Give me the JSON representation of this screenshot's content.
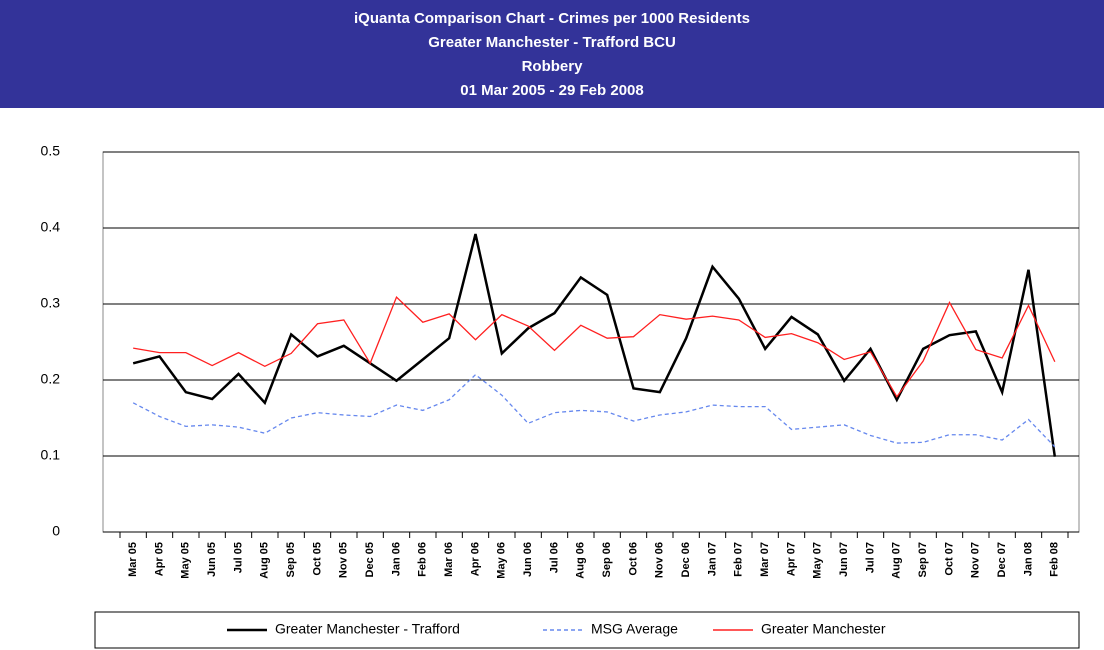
{
  "chart_data": {
    "type": "line",
    "title": [
      "iQuanta Comparison Chart - Crimes per 1000 Residents",
      "Greater Manchester - Trafford BCU",
      "Robbery",
      "01 Mar 2005 - 29 Feb 2008"
    ],
    "categories": [
      "Mar 05",
      "Apr 05",
      "May 05",
      "Jun 05",
      "Jul 05",
      "Aug 05",
      "Sep 05",
      "Oct 05",
      "Nov 05",
      "Dec 05",
      "Jan 06",
      "Feb 06",
      "Mar 06",
      "Apr 06",
      "May 06",
      "Jun 06",
      "Jul 06",
      "Aug 06",
      "Sep 06",
      "Oct 06",
      "Nov 06",
      "Dec 06",
      "Jan 07",
      "Feb 07",
      "Mar 07",
      "Apr 07",
      "May 07",
      "Jun 07",
      "Jul 07",
      "Aug 07",
      "Sep 07",
      "Oct 07",
      "Nov 07",
      "Dec 07",
      "Jan 08",
      "Feb 08"
    ],
    "series": [
      {
        "name": "Greater Manchester - Trafford",
        "color": "#000000",
        "dashed": false,
        "values": [
          0.222,
          0.231,
          0.184,
          0.175,
          0.208,
          0.17,
          0.26,
          0.231,
          0.245,
          0.222,
          0.199,
          0.227,
          0.255,
          0.392,
          0.235,
          0.268,
          0.288,
          0.335,
          0.312,
          0.189,
          0.184,
          0.255,
          0.349,
          0.307,
          0.241,
          0.283,
          0.26,
          0.199,
          0.241,
          0.174,
          0.241,
          0.259,
          0.264,
          0.184,
          0.345,
          0.099
        ]
      },
      {
        "name": "MSG Average",
        "color": "#6688ee",
        "dashed": true,
        "values": [
          0.17,
          0.152,
          0.139,
          0.141,
          0.138,
          0.13,
          0.15,
          0.157,
          0.154,
          0.152,
          0.167,
          0.16,
          0.174,
          0.207,
          0.18,
          0.143,
          0.157,
          0.16,
          0.158,
          0.146,
          0.154,
          0.158,
          0.167,
          0.165,
          0.165,
          0.135,
          0.138,
          0.141,
          0.127,
          0.117,
          0.118,
          0.128,
          0.128,
          0.121,
          0.148,
          0.112
        ]
      },
      {
        "name": "Greater Manchester",
        "color": "#ff2020",
        "dashed": false,
        "values": [
          0.242,
          0.236,
          0.236,
          0.219,
          0.236,
          0.218,
          0.235,
          0.274,
          0.279,
          0.222,
          0.309,
          0.276,
          0.287,
          0.253,
          0.286,
          0.271,
          0.239,
          0.272,
          0.255,
          0.257,
          0.286,
          0.28,
          0.284,
          0.279,
          0.256,
          0.261,
          0.249,
          0.227,
          0.237,
          0.178,
          0.225,
          0.302,
          0.24,
          0.229,
          0.298,
          0.224
        ]
      }
    ],
    "ylim": [
      0,
      0.5
    ],
    "yticks": [
      0,
      0.1,
      0.2,
      0.3,
      0.4,
      0.5
    ],
    "grid": true,
    "legend": "bottom"
  }
}
